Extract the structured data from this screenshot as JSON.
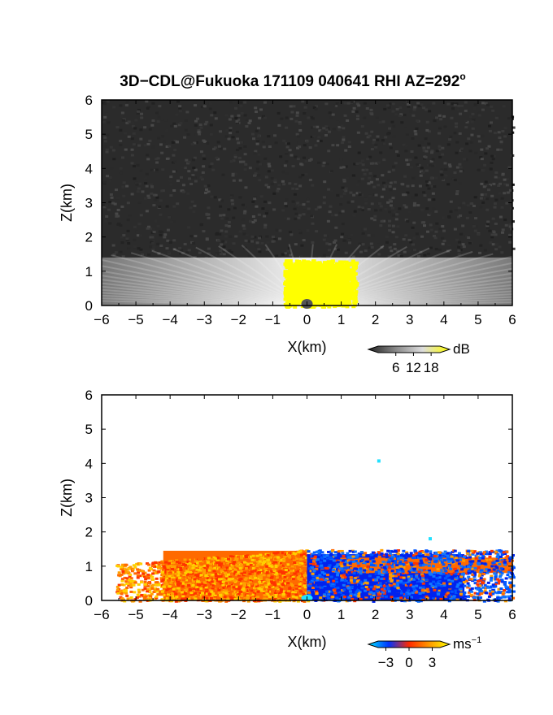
{
  "figure": {
    "title": "3D−CDL@Fukuoka 171109 040641 RHI AZ=292",
    "title_suffix": "o"
  },
  "chart_data": [
    {
      "type": "heatmap",
      "name": "intensity-panel",
      "xlabel": "X(km)",
      "ylabel": "Z(km)",
      "xlim": [
        -6,
        6
      ],
      "ylim": [
        0,
        6
      ],
      "xticks": [
        -6,
        -5,
        -4,
        -3,
        -2,
        -1,
        0,
        1,
        2,
        3,
        4,
        5,
        6
      ],
      "yticks": [
        0,
        1,
        2,
        3,
        4,
        5,
        6
      ],
      "grid": false,
      "colorbar": {
        "label": "dB",
        "tick_labels": [
          "6",
          "12",
          "18"
        ],
        "ticks": [
          6,
          12,
          18
        ],
        "range": [
          0,
          21
        ],
        "colors": [
          "#222222",
          "#888888",
          "#dddddd",
          "#ffff00"
        ]
      },
      "features": {
        "background_noise_top_km": 6,
        "bright_layer_top_km": 1.4,
        "saturated_region_x_km": [
          -0.7,
          1.4
        ],
        "saturated_region_top_km": 1.35,
        "saturated_color": "#ffff00",
        "background_color": "#2b2b2b",
        "layer_color": "#bbbbbb"
      }
    },
    {
      "type": "heatmap",
      "name": "velocity-panel",
      "xlabel": "X(km)",
      "ylabel": "Z(km)",
      "xlim": [
        -6,
        6
      ],
      "ylim": [
        0,
        6
      ],
      "xticks": [
        -6,
        -5,
        -4,
        -3,
        -2,
        -1,
        0,
        1,
        2,
        3,
        4,
        5,
        6
      ],
      "yticks": [
        0,
        1,
        2,
        3,
        4,
        5,
        6
      ],
      "grid": false,
      "colorbar": {
        "label": "ms",
        "label_exponent": "−1",
        "tick_labels": [
          "−3",
          "0",
          "3"
        ],
        "ticks": [
          -3,
          0,
          3
        ],
        "range": [
          -4,
          4
        ],
        "colors": [
          "#00e5ff",
          "#0033ff",
          "#ff2a00",
          "#ff9900",
          "#ffff00"
        ]
      },
      "features": {
        "echo_top_km": 1.5,
        "positive_region_x_km": [
          -5.6,
          0
        ],
        "negative_region_x_km": [
          0,
          6
        ],
        "positive_colors": [
          "#ff3300",
          "#ff6a00",
          "#ffa000",
          "#ffd000"
        ],
        "negative_colors": [
          "#0022ee",
          "#0055ff",
          "#1177ff"
        ],
        "isolated_points": [
          {
            "x": 2.1,
            "z": 4.07,
            "color": "#22e0ff"
          },
          {
            "x": 3.6,
            "z": 1.8,
            "color": "#22e0ff"
          }
        ]
      }
    }
  ]
}
